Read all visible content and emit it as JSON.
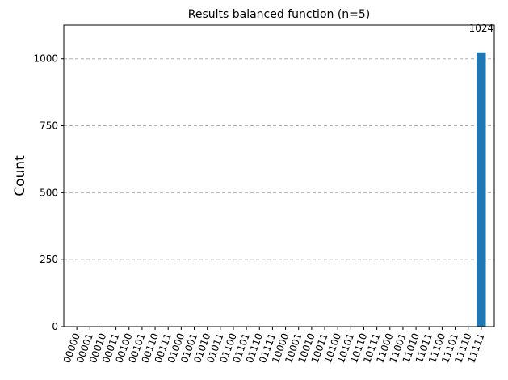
{
  "chart_data": {
    "type": "bar",
    "title": "Results balanced function (n=5)",
    "xlabel": "",
    "ylabel": "Count",
    "ylim": [
      0,
      1126
    ],
    "yticks": [
      0,
      250,
      500,
      750,
      1000
    ],
    "grid": "y-dashed",
    "bar_color": "#1f77b4",
    "categories": [
      "00000",
      "00001",
      "00010",
      "00011",
      "00100",
      "00101",
      "00110",
      "00111",
      "01000",
      "01001",
      "01010",
      "01011",
      "01100",
      "01101",
      "01110",
      "01111",
      "10000",
      "10001",
      "10010",
      "10011",
      "10100",
      "10101",
      "10110",
      "10111",
      "11000",
      "11001",
      "11010",
      "11011",
      "11100",
      "11101",
      "11110",
      "11111"
    ],
    "values": [
      0,
      0,
      0,
      0,
      0,
      0,
      0,
      0,
      0,
      0,
      0,
      0,
      0,
      0,
      0,
      0,
      0,
      0,
      0,
      0,
      0,
      0,
      0,
      0,
      0,
      0,
      0,
      0,
      0,
      0,
      0,
      1024
    ],
    "data_labels": {
      "11111": "1024"
    }
  }
}
